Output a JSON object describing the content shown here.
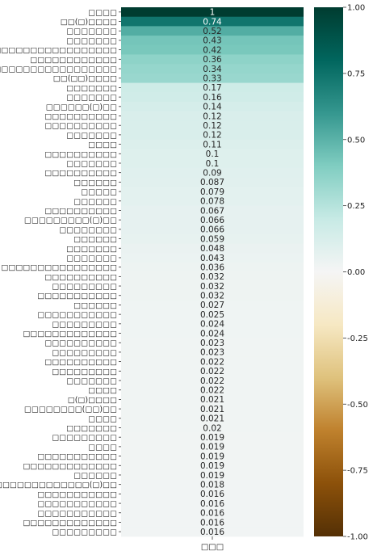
{
  "chart_data": {
    "type": "heatmap",
    "x_categories": [
      "□□□"
    ],
    "row_labels": [
      "□□□□",
      "□□(□)□□□□",
      "□□□□□□□",
      "□□□□□□□",
      "□□□□□□□□□□□□□□□□□□□□",
      "□□□□□□□□□□□□",
      "□□□□□□□□□□□□□□□□□□□□□□□□",
      "□□(□□)□□□□",
      "□□□□□□□",
      "□□□□□□□",
      "□□□□□□(□)□□",
      "□□□□□□□□□□",
      "□□□□□□□□□□",
      "□□□□□□□",
      "□□□□",
      "□□□□□□□□□□",
      "□□□□□□□",
      "□□□□□□□□□□",
      "□□□□□□",
      "□□□□□",
      "□□□□□□",
      "□□□□□□□□□□",
      "□□□□□□□□□(□)□□",
      "□□□□□□□□",
      "□□□□□□",
      "□□□□□□□",
      "□□□□□□□",
      "□□□□□□□□□□□□□□□□",
      "□□□□□□□□□□",
      "□□□□□□□□□",
      "□□□□□□□□□□□",
      "□□□□□□",
      "□□□□□□□□□□□",
      "□□□□□□□□□",
      "□□□□□□□□□□□□□",
      "□□□□□□□□□□",
      "□□□□□□□□□",
      "□□□□□□□□□□",
      "□□□□□□□□□",
      "□□□□□□□",
      "□□□□",
      "□(□)□□□□",
      "□□□□□□□□(□□)□□",
      "□□□□",
      "□□□□□□□",
      "□□□□□□□□□",
      "□□□□",
      "□□□□□□□□□□□",
      "□□□□□□□□□□□□□",
      "□□□□□□",
      "□□□□□□□□□□□□□(□)□□",
      "□□□□□□□□□□□",
      "□□□□□□□□□□□",
      "□□□□□□□□□□□",
      "□□□□□□□□□□□□□",
      "□□□□□□□□□"
    ],
    "values": [
      1,
      0.74,
      0.52,
      0.43,
      0.42,
      0.36,
      0.34,
      0.33,
      0.17,
      0.16,
      0.14,
      0.12,
      0.12,
      0.12,
      0.11,
      0.1,
      0.1,
      0.09,
      0.087,
      0.079,
      0.078,
      0.067,
      0.066,
      0.066,
      0.059,
      0.048,
      0.043,
      0.036,
      0.032,
      0.032,
      0.032,
      0.027,
      0.025,
      0.024,
      0.024,
      0.023,
      0.023,
      0.022,
      0.022,
      0.022,
      0.022,
      0.021,
      0.021,
      0.021,
      0.02,
      0.019,
      0.019,
      0.019,
      0.019,
      0.019,
      0.018,
      0.016,
      0.016,
      0.016,
      0.016,
      0.016
    ],
    "value_labels": [
      "1",
      "0.74",
      "0.52",
      "0.43",
      "0.42",
      "0.36",
      "0.34",
      "0.33",
      "0.17",
      "0.16",
      "0.14",
      "0.12",
      "0.12",
      "0.12",
      "0.11",
      "0.1",
      "0.1",
      "0.09",
      "0.087",
      "0.079",
      "0.078",
      "0.067",
      "0.066",
      "0.066",
      "0.059",
      "0.048",
      "0.043",
      "0.036",
      "0.032",
      "0.032",
      "0.032",
      "0.027",
      "0.025",
      "0.024",
      "0.024",
      "0.023",
      "0.023",
      "0.022",
      "0.022",
      "0.022",
      "0.022",
      "0.021",
      "0.021",
      "0.021",
      "0.02",
      "0.019",
      "0.019",
      "0.019",
      "0.019",
      "0.019",
      "0.018",
      "0.016",
      "0.016",
      "0.016",
      "0.016",
      "0.016"
    ],
    "colorbar": {
      "min": -1,
      "max": 1,
      "ticks": [
        1,
        0.75,
        0.5,
        0.25,
        0,
        -0.25,
        -0.5,
        -0.75,
        -1
      ],
      "tick_labels": [
        "1.00",
        "0.75",
        "0.50",
        "0.25",
        "0.00",
        "-0.25",
        "-0.50",
        "-0.75",
        "-1.00"
      ]
    },
    "colormap": "BrBG",
    "title": "",
    "xlabel": "",
    "ylabel": ""
  }
}
